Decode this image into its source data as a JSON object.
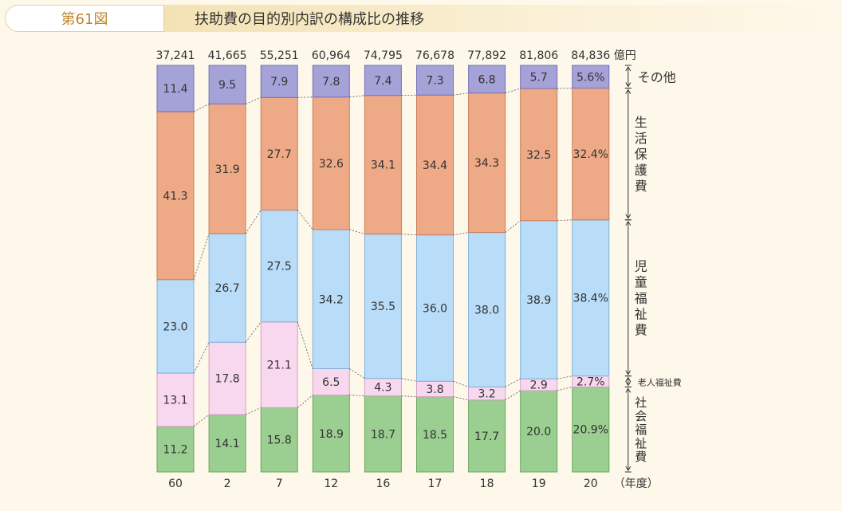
{
  "header": {
    "figure_no": "第61図",
    "title": "扶助費の目的別内訳の構成比の推移"
  },
  "chart_data": {
    "type": "stacked-bar-100",
    "title": "扶助費の目的別内訳の構成比の推移",
    "total_unit": "億円",
    "x_unit": "（年度）",
    "categories": [
      "60",
      "2",
      "7",
      "12",
      "16",
      "17",
      "18",
      "19",
      "20"
    ],
    "totals": [
      "37,241",
      "41,665",
      "55,251",
      "60,964",
      "74,795",
      "76,678",
      "77,892",
      "81,806",
      "84,836"
    ],
    "series": [
      {
        "name": "社会福祉費",
        "color": "#9bcf91",
        "values": [
          11.2,
          14.1,
          15.8,
          18.9,
          18.7,
          18.5,
          17.7,
          20.0,
          20.9
        ]
      },
      {
        "name": "老人福祉費",
        "color": "#f8d8ee",
        "values": [
          13.1,
          17.8,
          21.1,
          6.5,
          4.3,
          3.8,
          3.2,
          2.9,
          2.7
        ]
      },
      {
        "name": "児童福祉費",
        "color": "#b9dcf8",
        "values": [
          23.0,
          26.7,
          27.5,
          34.2,
          35.5,
          36.0,
          38.0,
          38.9,
          38.4
        ]
      },
      {
        "name": "生活保護費",
        "color": "#eeaa87",
        "values": [
          41.3,
          31.9,
          27.7,
          32.6,
          34.1,
          34.4,
          34.3,
          32.5,
          32.4
        ]
      },
      {
        "name": "その他",
        "color": "#a5a2d8",
        "values": [
          11.4,
          9.5,
          7.9,
          7.8,
          7.4,
          7.3,
          6.8,
          5.7,
          5.6
        ]
      }
    ],
    "last_column_percent_labels": [
      "20.9%",
      "2.7%",
      "38.4%",
      "32.4%",
      "5.6%"
    ],
    "ylim": [
      0,
      100
    ]
  }
}
